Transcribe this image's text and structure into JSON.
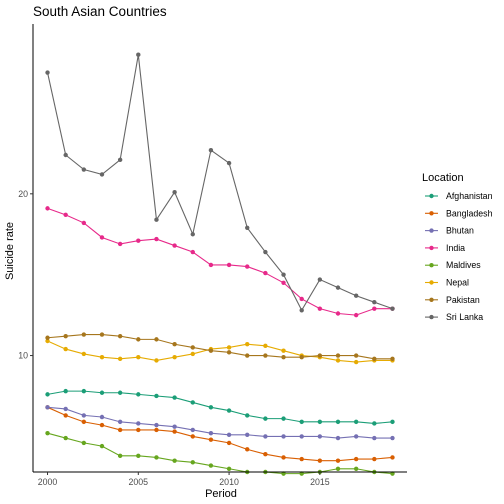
{
  "chart_data": {
    "type": "line",
    "title": "South Asian Countries",
    "xlabel": "Period",
    "ylabel": "Suicide rate",
    "xlim": [
      1999.2,
      2019.8
    ],
    "ylim": [
      2.8,
      30.5
    ],
    "xticks": [
      2000,
      2005,
      2010,
      2015
    ],
    "yticks": [
      10,
      20
    ],
    "grid": false,
    "legend": {
      "title": "Location",
      "placement": "right"
    },
    "x": [
      2000,
      2001,
      2002,
      2003,
      2004,
      2005,
      2006,
      2007,
      2008,
      2009,
      2010,
      2011,
      2012,
      2013,
      2014,
      2015,
      2016,
      2017,
      2018,
      2019
    ],
    "series": [
      {
        "name": "Afghanistan",
        "color": "#1b9e77",
        "values": [
          7.6,
          7.8,
          7.8,
          7.7,
          7.7,
          7.6,
          7.5,
          7.4,
          7.1,
          6.8,
          6.6,
          6.3,
          6.1,
          6.1,
          5.9,
          5.9,
          5.9,
          5.9,
          5.8,
          5.9
        ]
      },
      {
        "name": "Bangladesh",
        "color": "#d95f02",
        "values": [
          6.8,
          6.3,
          5.9,
          5.7,
          5.4,
          5.4,
          5.4,
          5.3,
          5.0,
          4.8,
          4.6,
          4.2,
          3.9,
          3.7,
          3.6,
          3.5,
          3.5,
          3.6,
          3.6,
          3.7
        ]
      },
      {
        "name": "Bhutan",
        "color": "#7570b3",
        "values": [
          6.8,
          6.7,
          6.3,
          6.2,
          5.9,
          5.8,
          5.7,
          5.6,
          5.4,
          5.2,
          5.1,
          5.1,
          5.0,
          5.0,
          5.0,
          5.0,
          4.9,
          5.0,
          4.9,
          4.9
        ]
      },
      {
        "name": "India",
        "color": "#e7298a",
        "values": [
          19.1,
          18.7,
          18.2,
          17.3,
          16.9,
          17.1,
          17.2,
          16.8,
          16.4,
          15.6,
          15.6,
          15.5,
          15.1,
          14.5,
          13.5,
          12.9,
          12.6,
          12.5,
          12.9,
          12.9
        ]
      },
      {
        "name": "Maldives",
        "color": "#66a61e",
        "values": [
          5.2,
          4.9,
          4.6,
          4.4,
          3.8,
          3.8,
          3.7,
          3.5,
          3.4,
          3.2,
          3.0,
          2.8,
          2.8,
          2.7,
          2.7,
          2.8,
          3.0,
          3.0,
          2.8,
          2.7
        ]
      },
      {
        "name": "Nepal",
        "color": "#e6ab02",
        "values": [
          10.9,
          10.4,
          10.1,
          9.9,
          9.8,
          9.9,
          9.7,
          9.9,
          10.1,
          10.4,
          10.5,
          10.7,
          10.6,
          10.3,
          10.0,
          9.9,
          9.7,
          9.6,
          9.7,
          9.7
        ]
      },
      {
        "name": "Pakistan",
        "color": "#a6761d",
        "values": [
          11.1,
          11.2,
          11.3,
          11.3,
          11.2,
          11.0,
          11.0,
          10.7,
          10.5,
          10.3,
          10.2,
          10.0,
          10.0,
          9.9,
          9.9,
          10.0,
          10.0,
          10.0,
          9.8,
          9.8
        ]
      },
      {
        "name": "Sri Lanka",
        "color": "#666666",
        "values": [
          27.5,
          22.4,
          21.5,
          21.2,
          22.1,
          28.6,
          18.4,
          20.1,
          17.5,
          22.7,
          21.9,
          17.9,
          16.4,
          15.0,
          12.8,
          14.7,
          14.2,
          13.7,
          13.3,
          12.9
        ]
      }
    ]
  }
}
